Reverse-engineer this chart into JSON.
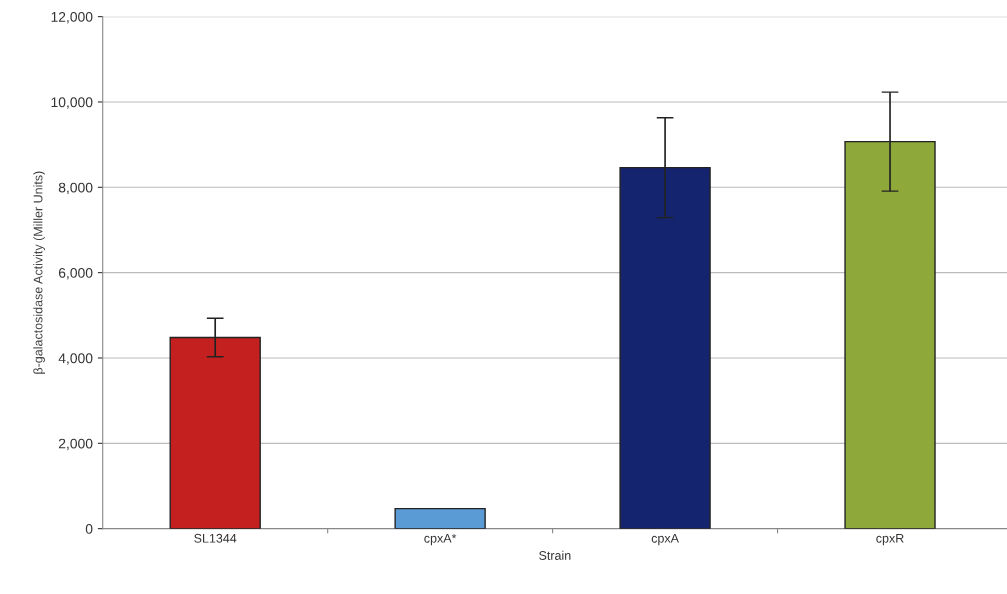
{
  "chart_data": {
    "type": "bar",
    "xlabel": "Strain",
    "ylabel": "β-galactosidase Activity (Miller Units)",
    "categories": [
      "SL1344",
      "cpxA*",
      "cpxA",
      "cpxR"
    ],
    "values": [
      4480,
      470,
      8460,
      9070
    ],
    "errors": [
      450,
      null,
      1170,
      1160
    ],
    "colors": [
      "#c42020",
      "#5b9bd5",
      "#14246e",
      "#8fa83a"
    ],
    "ylim": [
      0,
      12000
    ],
    "yticks": [
      {
        "value": 0,
        "label": "0"
      },
      {
        "value": 2000,
        "label": "2,000"
      },
      {
        "value": 4000,
        "label": "4,000"
      },
      {
        "value": 6000,
        "label": "6,000"
      },
      {
        "value": 8000,
        "label": "8,000"
      },
      {
        "value": 10000,
        "label": "10,000"
      },
      {
        "value": 12000,
        "label": "12,000"
      }
    ],
    "grid": "y",
    "legend": false
  }
}
